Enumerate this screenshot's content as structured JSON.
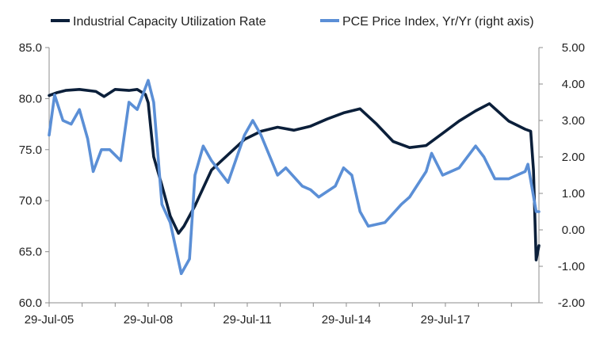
{
  "chart_data": {
    "type": "line",
    "legend": {
      "placement": "top"
    },
    "x_tick_labels": [
      "29-Jul-05",
      "29-Jul-08",
      "29-Jul-11",
      "29-Jul-14",
      "29-Jul-17"
    ],
    "x_range": [
      "2005-07",
      "2020-05"
    ],
    "left_axis": {
      "ylim": [
        60.0,
        85.0
      ],
      "ticks": [
        "60.0",
        "65.0",
        "70.0",
        "75.0",
        "80.0",
        "85.0"
      ]
    },
    "right_axis": {
      "ylim": [
        -2.0,
        5.0
      ],
      "ticks": [
        "-2.00",
        "-1.00",
        "0.00",
        "1.00",
        "2.00",
        "3.00",
        "4.00",
        "5.00"
      ]
    },
    "grid": false,
    "series": [
      {
        "name": "Industrial Capacity Utilization Rate",
        "axis": "left",
        "color": "#0b1f3a",
        "points": [
          [
            "2005-07",
            80.3
          ],
          [
            "2005-10",
            80.6
          ],
          [
            "2006-01",
            80.8
          ],
          [
            "2006-06",
            80.9
          ],
          [
            "2006-12",
            80.7
          ],
          [
            "2007-03",
            80.2
          ],
          [
            "2007-07",
            80.9
          ],
          [
            "2007-12",
            80.8
          ],
          [
            "2008-03",
            80.9
          ],
          [
            "2008-06",
            80.4
          ],
          [
            "2008-07",
            79.6
          ],
          [
            "2008-09",
            74.3
          ],
          [
            "2008-12",
            71.5
          ],
          [
            "2009-03",
            68.5
          ],
          [
            "2009-06",
            66.8
          ],
          [
            "2009-08",
            67.5
          ],
          [
            "2009-12",
            69.5
          ],
          [
            "2010-06",
            73.0
          ],
          [
            "2010-12",
            74.5
          ],
          [
            "2011-06",
            76.0
          ],
          [
            "2011-12",
            76.8
          ],
          [
            "2012-06",
            77.2
          ],
          [
            "2012-12",
            76.9
          ],
          [
            "2013-06",
            77.3
          ],
          [
            "2013-12",
            78.0
          ],
          [
            "2014-06",
            78.6
          ],
          [
            "2014-12",
            79.0
          ],
          [
            "2015-06",
            77.5
          ],
          [
            "2015-12",
            75.8
          ],
          [
            "2016-06",
            75.2
          ],
          [
            "2016-12",
            75.4
          ],
          [
            "2017-06",
            76.6
          ],
          [
            "2017-12",
            77.8
          ],
          [
            "2018-06",
            78.8
          ],
          [
            "2018-11",
            79.5
          ],
          [
            "2019-06",
            77.8
          ],
          [
            "2019-12",
            77.0
          ],
          [
            "2020-02",
            76.8
          ],
          [
            "2020-03",
            73.0
          ],
          [
            "2020-04",
            64.2
          ],
          [
            "2020-05",
            65.6
          ]
        ]
      },
      {
        "name": "PCE Price Index, Yr/Yr (right axis)",
        "axis": "right",
        "color": "#5b8fd6",
        "points": [
          [
            "2005-07",
            2.6
          ],
          [
            "2005-09",
            3.7
          ],
          [
            "2005-12",
            3.0
          ],
          [
            "2006-03",
            2.9
          ],
          [
            "2006-06",
            3.3
          ],
          [
            "2006-09",
            2.5
          ],
          [
            "2006-11",
            1.6
          ],
          [
            "2007-02",
            2.2
          ],
          [
            "2007-05",
            2.2
          ],
          [
            "2007-09",
            1.9
          ],
          [
            "2007-12",
            3.5
          ],
          [
            "2008-03",
            3.3
          ],
          [
            "2008-07",
            4.1
          ],
          [
            "2008-09",
            3.5
          ],
          [
            "2008-12",
            0.7
          ],
          [
            "2009-03",
            0.2
          ],
          [
            "2009-07",
            -1.2
          ],
          [
            "2009-10",
            -0.8
          ],
          [
            "2009-12",
            1.5
          ],
          [
            "2010-03",
            2.3
          ],
          [
            "2010-06",
            1.9
          ],
          [
            "2010-12",
            1.3
          ],
          [
            "2011-06",
            2.6
          ],
          [
            "2011-09",
            3.0
          ],
          [
            "2011-12",
            2.6
          ],
          [
            "2012-06",
            1.5
          ],
          [
            "2012-09",
            1.7
          ],
          [
            "2013-03",
            1.2
          ],
          [
            "2013-06",
            1.1
          ],
          [
            "2013-09",
            0.9
          ],
          [
            "2014-03",
            1.2
          ],
          [
            "2014-06",
            1.7
          ],
          [
            "2014-09",
            1.5
          ],
          [
            "2014-12",
            0.5
          ],
          [
            "2015-03",
            0.1
          ],
          [
            "2015-09",
            0.2
          ],
          [
            "2016-03",
            0.7
          ],
          [
            "2016-06",
            0.9
          ],
          [
            "2016-12",
            1.6
          ],
          [
            "2017-02",
            2.1
          ],
          [
            "2017-06",
            1.5
          ],
          [
            "2017-12",
            1.7
          ],
          [
            "2018-06",
            2.3
          ],
          [
            "2018-09",
            2.0
          ],
          [
            "2019-01",
            1.4
          ],
          [
            "2019-06",
            1.4
          ],
          [
            "2019-12",
            1.6
          ],
          [
            "2020-01",
            1.8
          ],
          [
            "2020-04",
            0.5
          ],
          [
            "2020-05",
            0.5
          ]
        ]
      }
    ]
  }
}
